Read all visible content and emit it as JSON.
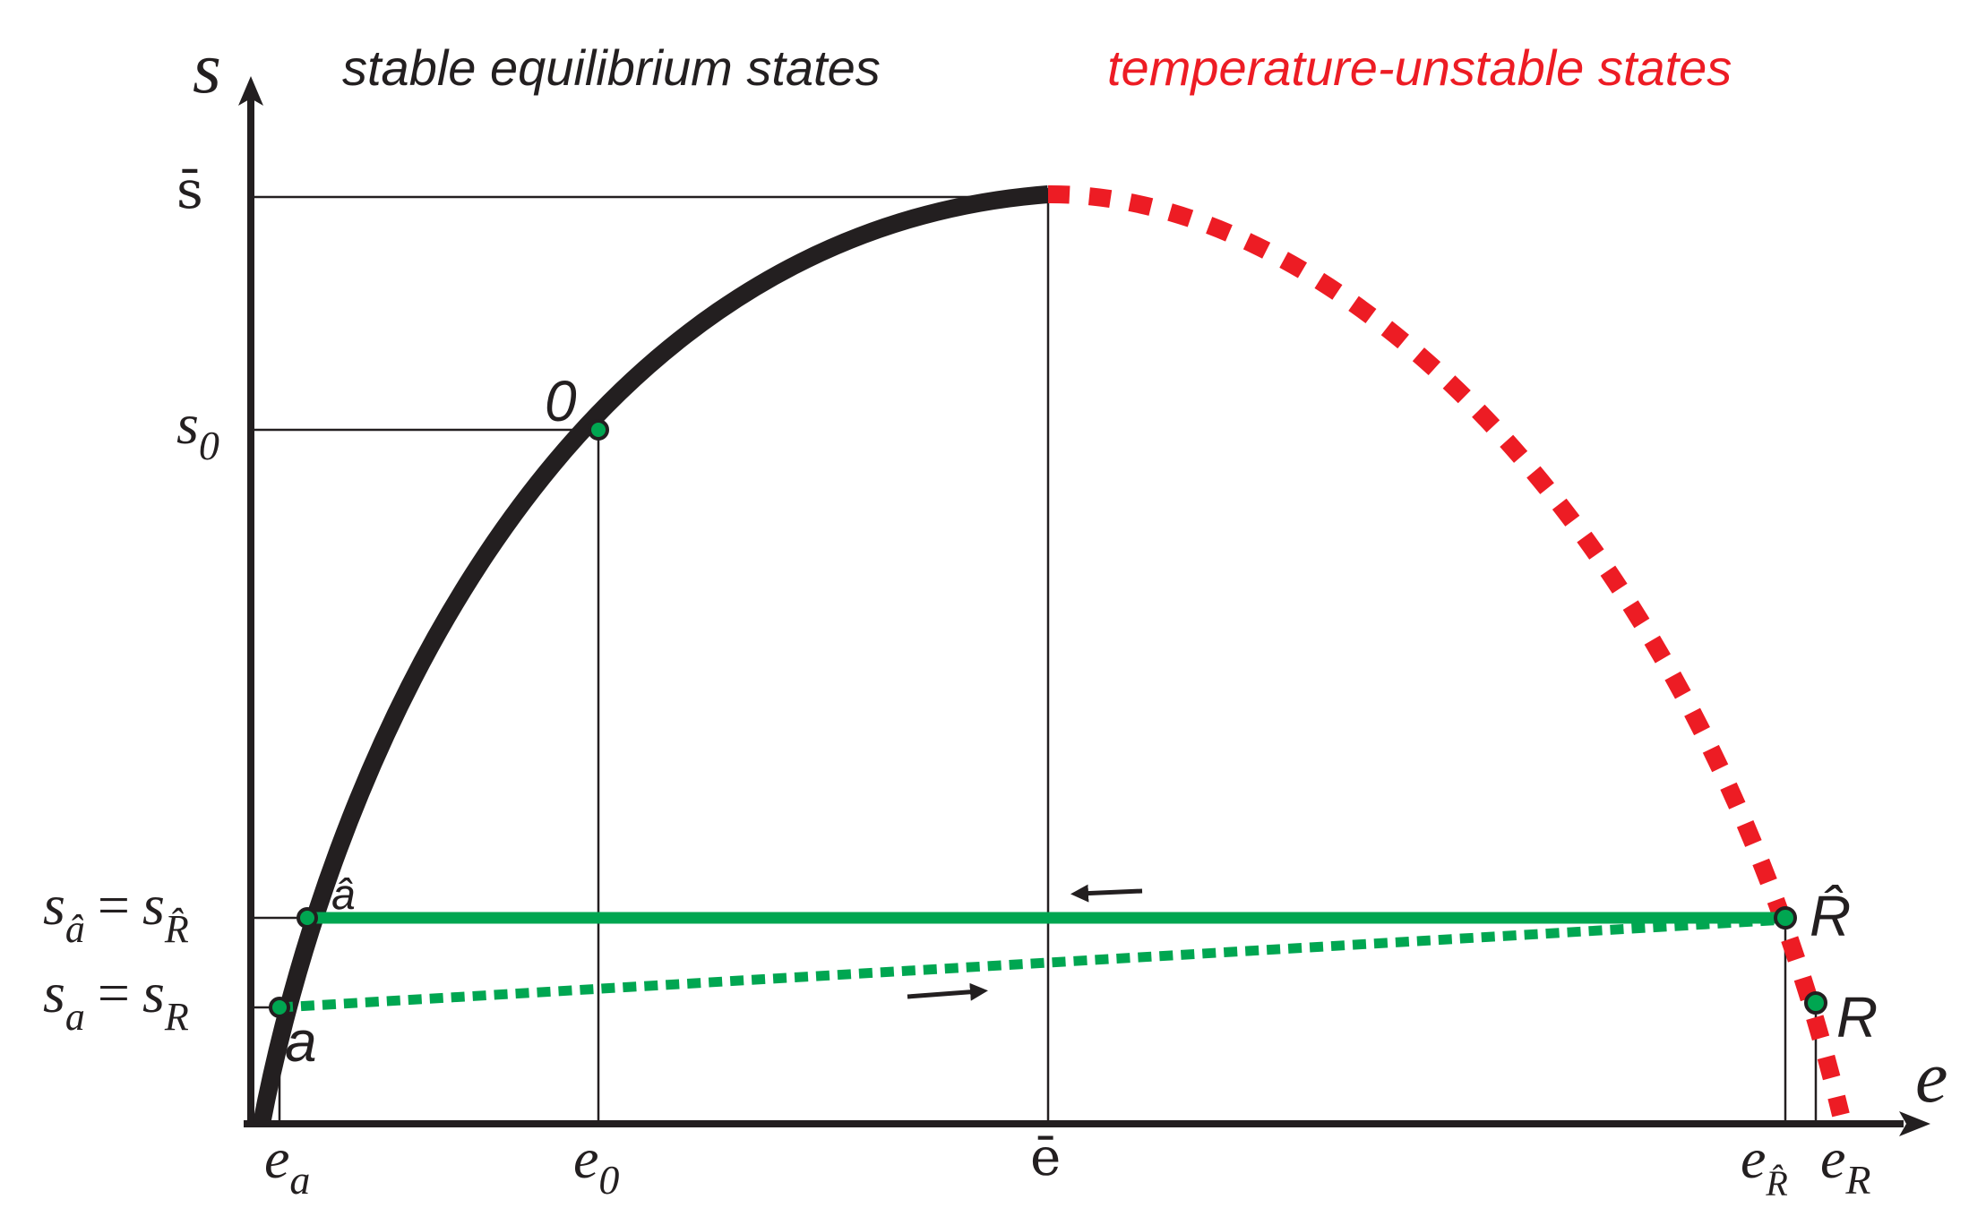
{
  "axes": {
    "y_label": "s",
    "x_label": "e"
  },
  "headers": {
    "stable": "stable equilibrium states",
    "unstable": "temperature-unstable states"
  },
  "y_ticks": {
    "s_bar": "s̄",
    "s0_base": "s",
    "s0_sub": "0",
    "shat_lhs_base": "s",
    "shat_lhs_sub": "â",
    "shat_eq": "=",
    "shat_rhs_base": "s",
    "shat_rhs_sub": "R̂",
    "sa_lhs_base": "s",
    "sa_lhs_sub": "a",
    "sa_eq": "=",
    "sa_rhs_base": "s",
    "sa_rhs_sub": "R"
  },
  "x_ticks": {
    "ea_base": "e",
    "ea_sub": "a",
    "e0_base": "e",
    "e0_sub": "0",
    "ebar": "ē",
    "eRhat_base": "e",
    "eRhat_sub": "R̂",
    "eR_base": "e",
    "eR_sub": "R"
  },
  "points": {
    "zero": "0",
    "a_hat": "â",
    "a": "a",
    "R_hat": "R̂",
    "R": "R"
  },
  "colors": {
    "stable_curve": "#231f20",
    "unstable_curve": "#ed1c24",
    "green": "#00a651",
    "point_fill": "#00a651",
    "axis": "#231f20"
  }
}
